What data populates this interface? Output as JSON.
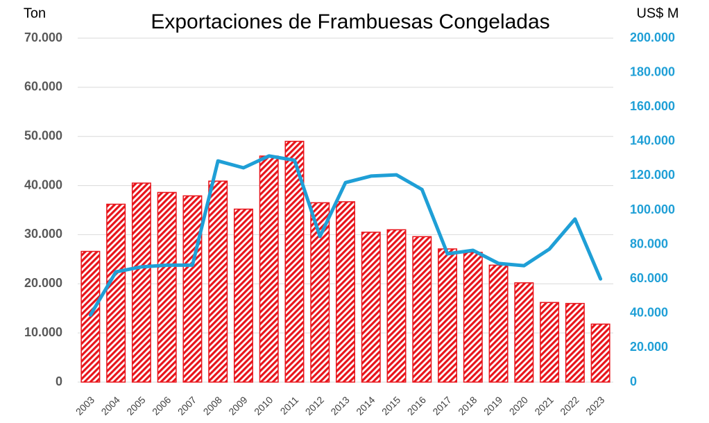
{
  "chart_data": {
    "type": "bar_line",
    "title": "Exportaciones de Frambuesas Congeladas",
    "y_label": "Ton",
    "y2_label": "US$ M",
    "categories": [
      "2003",
      "2004",
      "2005",
      "2006",
      "2007",
      "2008",
      "2009",
      "2010",
      "2011",
      "2012",
      "2013",
      "2014",
      "2015",
      "2016",
      "2017",
      "2018",
      "2019",
      "2020",
      "2021",
      "2022",
      "2023"
    ],
    "series": [
      {
        "name": "Ton",
        "type": "bar",
        "color": "#e8141b",
        "values": [
          26600,
          36200,
          40500,
          38600,
          37900,
          40900,
          35200,
          46000,
          49000,
          36500,
          36700,
          30500,
          31000,
          29600,
          27100,
          26400,
          23800,
          20200,
          16200,
          16000,
          11800
        ]
      },
      {
        "name": "US$ M",
        "type": "line",
        "axis": "y2",
        "color": "#1f9fd6",
        "values": [
          39000,
          64100,
          67000,
          68000,
          68000,
          128600,
          124600,
          131500,
          129000,
          84700,
          116000,
          119800,
          120500,
          112000,
          74600,
          76600,
          69000,
          67700,
          77400,
          94800,
          60000
        ]
      }
    ],
    "ylim": [
      0,
      70000
    ],
    "yticks": [
      0,
      {
        "value": 10000,
        "label": "10.000"
      },
      {
        "value": 20000,
        "label": "20.000"
      },
      {
        "value": 30000,
        "label": "30.000"
      },
      {
        "value": 40000,
        "label": "40.000"
      },
      {
        "value": 50000,
        "label": "50.000"
      },
      {
        "value": 60000,
        "label": "60.000"
      },
      {
        "value": 70000,
        "label": "70.000"
      }
    ],
    "y2lim": [
      0,
      200000
    ],
    "y2ticks": [
      0,
      {
        "value": 20000,
        "label": "20.000"
      },
      {
        "value": 40000,
        "label": "40.000"
      },
      {
        "value": 60000,
        "label": "60.000"
      },
      {
        "value": 80000,
        "label": "80.000"
      },
      {
        "value": 100000,
        "label": "100.000"
      },
      {
        "value": 120000,
        "label": "120.000"
      },
      {
        "value": 140000,
        "label": "140.000"
      },
      {
        "value": 160000,
        "label": "160.000"
      },
      {
        "value": 180000,
        "label": "180.000"
      },
      {
        "value": 200000,
        "label": "200.000"
      }
    ],
    "grid": true
  }
}
